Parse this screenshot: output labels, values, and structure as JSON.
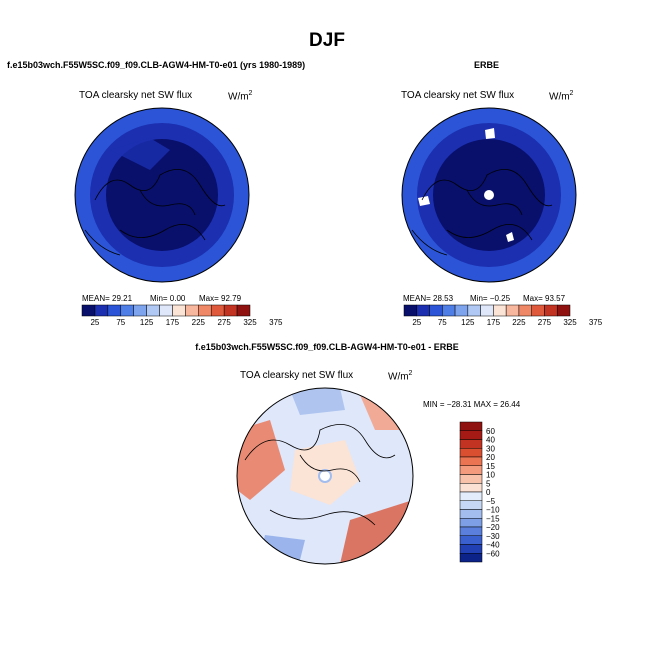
{
  "figure": {
    "season": "DJF",
    "model_label": "f.e15b03wch.F55W5SC.f09_f09.CLB-AGW4-HM-T0-e01 (yrs 1980-1989)",
    "obs_label": "ERBE",
    "diff_label": "f.e15b03wch.F55W5SC.f09_f09.CLB-AGW4-HM-T0-e01 - ERBE"
  },
  "panels": {
    "model": {
      "field": "TOA clearsky net SW flux",
      "units": "W/m",
      "units_exp": "2",
      "stats": {
        "mean": "MEAN= 29.21",
        "min": "Min= 0.00",
        "max": "Max= 92.79"
      }
    },
    "obs": {
      "field": "TOA clearsky net SW flux",
      "units": "W/m",
      "units_exp": "2",
      "stats": {
        "mean": "MEAN= 28.53",
        "min": "Min= −0.25",
        "max": "Max= 93.57"
      }
    },
    "diff": {
      "field": "TOA clearsky net SW flux",
      "units": "W/m",
      "units_exp": "2",
      "stats": {
        "minmax": "MIN = −28.31  MAX = 26.44"
      }
    }
  },
  "colorbar_abs": {
    "colors": [
      "#08106b",
      "#1b2fb0",
      "#2b55d6",
      "#4f7ee6",
      "#7ea4ee",
      "#b0c9f4",
      "#dfe7fa",
      "#fbe3d6",
      "#f6b79e",
      "#ee8866",
      "#df5a3c",
      "#c23321",
      "#8f1210"
    ],
    "labels": [
      "25",
      "75",
      "125",
      "175",
      "225",
      "275",
      "325",
      "375"
    ]
  },
  "colorbar_diff": {
    "colors": [
      "#8f1210",
      "#a51a14",
      "#c23321",
      "#da4f30",
      "#eb7452",
      "#f49b7d",
      "#f8c1aa",
      "#fbe1d4",
      "#e3ecfa",
      "#c5d7f4",
      "#a2bdee",
      "#7e9fe6",
      "#5a7fdc",
      "#3a5fcf",
      "#2140b4",
      "#0c238a"
    ],
    "labels": [
      "60",
      "40",
      "30",
      "20",
      "15",
      "10",
      "5",
      "0",
      "−5",
      "−10",
      "−15",
      "−20",
      "−30",
      "−40",
      "−60"
    ]
  }
}
